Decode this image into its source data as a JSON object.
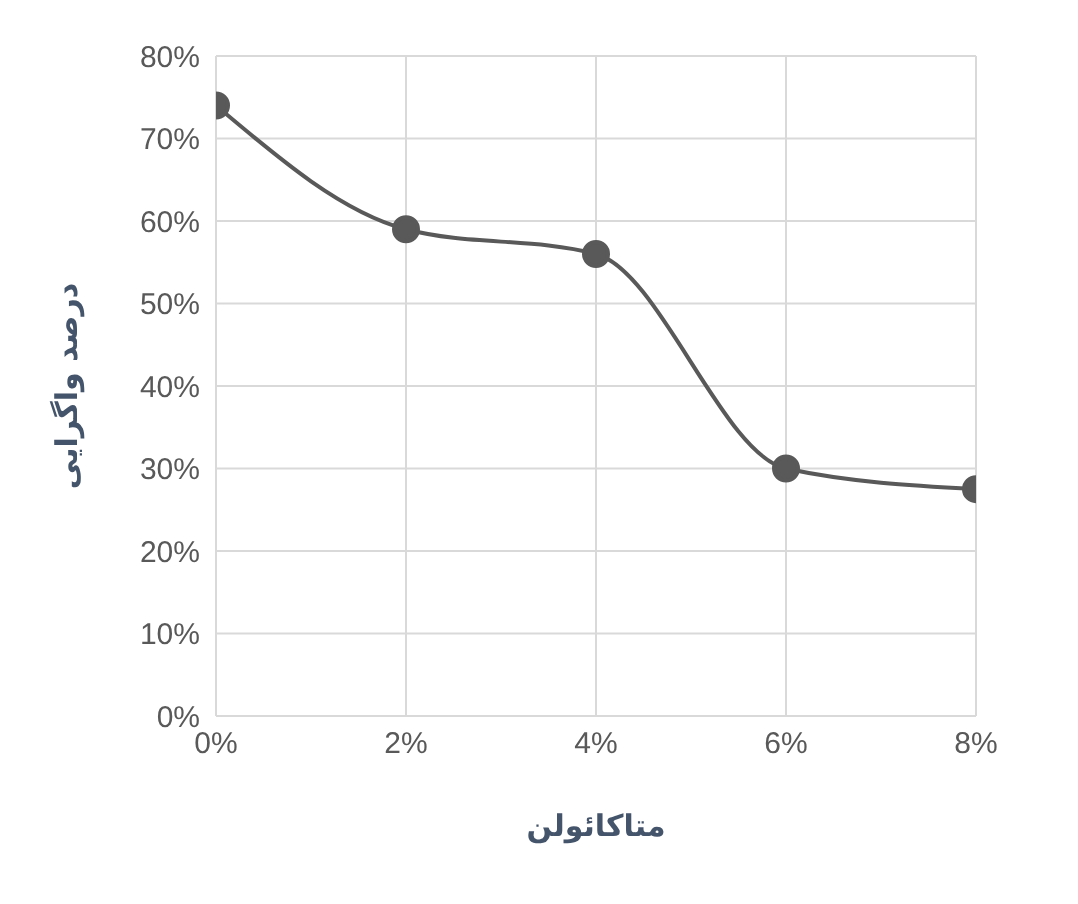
{
  "chart_data": {
    "type": "line",
    "xlabel": "متاکائولن",
    "ylabel": "درصد واگرایی",
    "x": [
      0,
      2,
      4,
      6,
      8
    ],
    "series": [
      {
        "color": "#595959",
        "values": [
          74,
          59,
          56,
          30,
          27.5
        ]
      }
    ],
    "xlim": [
      0,
      8
    ],
    "xticks": [
      {
        "value": 0,
        "label": "0%"
      },
      {
        "value": 2,
        "label": "2%"
      },
      {
        "value": 4,
        "label": "4%"
      },
      {
        "value": 6,
        "label": "6%"
      },
      {
        "value": 8,
        "label": "8%"
      }
    ],
    "ylim": [
      0,
      80
    ],
    "yticks": [
      {
        "value": 0,
        "label": "0%"
      },
      {
        "value": 10,
        "label": "10%"
      },
      {
        "value": 20,
        "label": "20%"
      },
      {
        "value": 30,
        "label": "30%"
      },
      {
        "value": 40,
        "label": "40%"
      },
      {
        "value": 50,
        "label": "50%"
      },
      {
        "value": 60,
        "label": "60%"
      },
      {
        "value": 70,
        "label": "70%"
      },
      {
        "value": 80,
        "label": "80%"
      }
    ],
    "grid": true,
    "marker": "circle",
    "line_style": "solid"
  }
}
